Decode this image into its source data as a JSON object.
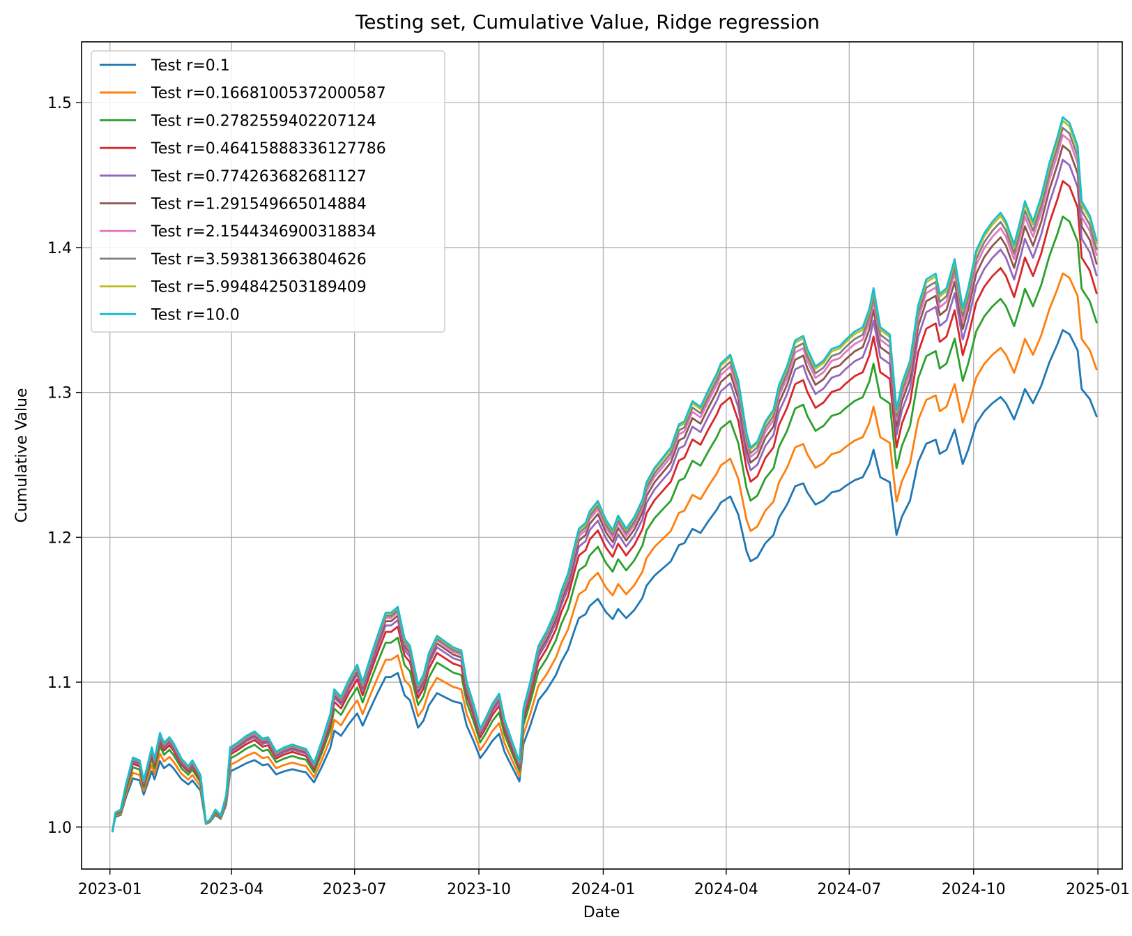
{
  "chart_data": {
    "type": "line",
    "title": "Testing set, Cumulative Value, Ridge regression",
    "xlabel": "Date",
    "ylabel": "Cumulative Value",
    "x_ticks": [
      "2023-01",
      "2023-04",
      "2023-07",
      "2023-10",
      "2024-01",
      "2024-04",
      "2024-07",
      "2024-10",
      "2025-01"
    ],
    "y_ticks": [
      "1.0",
      "1.1",
      "1.2",
      "1.3",
      "1.4",
      "1.5"
    ],
    "xlim": [
      "2022-12-11",
      "2025-01-19"
    ],
    "ylim": [
      0.971,
      1.542
    ],
    "grid": true,
    "legend_position": "upper-left",
    "base_series_dates": [
      "2023-01-03",
      "2023-01-05",
      "2023-01-09",
      "2023-01-13",
      "2023-01-18",
      "2023-01-23",
      "2023-01-26",
      "2023-02-01",
      "2023-02-03",
      "2023-02-07",
      "2023-02-10",
      "2023-02-14",
      "2023-02-17",
      "2023-02-23",
      "2023-02-28",
      "2023-03-03",
      "2023-03-09",
      "2023-03-13",
      "2023-03-16",
      "2023-03-20",
      "2023-03-24",
      "2023-03-28",
      "2023-03-31",
      "2023-04-05",
      "2023-04-12",
      "2023-04-18",
      "2023-04-24",
      "2023-04-28",
      "2023-05-04",
      "2023-05-10",
      "2023-05-16",
      "2023-05-22",
      "2023-05-26",
      "2023-06-01",
      "2023-06-07",
      "2023-06-13",
      "2023-06-16",
      "2023-06-21",
      "2023-06-27",
      "2023-07-03",
      "2023-07-07",
      "2023-07-12",
      "2023-07-18",
      "2023-07-24",
      "2023-07-28",
      "2023-08-02",
      "2023-08-07",
      "2023-08-11",
      "2023-08-17",
      "2023-08-21",
      "2023-08-25",
      "2023-08-31",
      "2023-09-06",
      "2023-09-12",
      "2023-09-18",
      "2023-09-22",
      "2023-09-27",
      "2023-10-02",
      "2023-10-06",
      "2023-10-11",
      "2023-10-16",
      "2023-10-20",
      "2023-10-26",
      "2023-10-31",
      "2023-11-03",
      "2023-11-08",
      "2023-11-14",
      "2023-11-20",
      "2023-11-27",
      "2023-12-01",
      "2023-12-06",
      "2023-12-11",
      "2023-12-14",
      "2023-12-19",
      "2023-12-22",
      "2023-12-28",
      "2024-01-03",
      "2024-01-08",
      "2024-01-12",
      "2024-01-18",
      "2024-01-24",
      "2024-01-30",
      "2024-02-02",
      "2024-02-08",
      "2024-02-14",
      "2024-02-20",
      "2024-02-26",
      "2024-03-01",
      "2024-03-07",
      "2024-03-13",
      "2024-03-19",
      "2024-03-25",
      "2024-03-28",
      "2024-04-04",
      "2024-04-10",
      "2024-04-16",
      "2024-04-19",
      "2024-04-24",
      "2024-04-30",
      "2024-05-06",
      "2024-05-10",
      "2024-05-16",
      "2024-05-22",
      "2024-05-28",
      "2024-05-31",
      "2024-06-06",
      "2024-06-12",
      "2024-06-18",
      "2024-06-24",
      "2024-06-28",
      "2024-07-05",
      "2024-07-11",
      "2024-07-16",
      "2024-07-19",
      "2024-07-24",
      "2024-07-31",
      "2024-08-05",
      "2024-08-09",
      "2024-08-15",
      "2024-08-21",
      "2024-08-27",
      "2024-09-03",
      "2024-09-06",
      "2024-09-11",
      "2024-09-17",
      "2024-09-23",
      "2024-09-27",
      "2024-10-03",
      "2024-10-09",
      "2024-10-15",
      "2024-10-21",
      "2024-10-25",
      "2024-10-31",
      "2024-11-05",
      "2024-11-08",
      "2024-11-14",
      "2024-11-20",
      "2024-11-26",
      "2024-12-02",
      "2024-12-06",
      "2024-12-11",
      "2024-12-17",
      "2024-12-20",
      "2024-12-26",
      "2024-12-31"
    ],
    "base_series_values": [
      0.997,
      1.01,
      1.012,
      1.03,
      1.048,
      1.046,
      1.032,
      1.055,
      1.047,
      1.065,
      1.058,
      1.062,
      1.058,
      1.047,
      1.042,
      1.046,
      1.036,
      1.003,
      1.005,
      1.012,
      1.008,
      1.022,
      1.055,
      1.058,
      1.063,
      1.066,
      1.061,
      1.062,
      1.052,
      1.055,
      1.057,
      1.055,
      1.054,
      1.044,
      1.06,
      1.078,
      1.095,
      1.09,
      1.102,
      1.112,
      1.1,
      1.115,
      1.132,
      1.148,
      1.148,
      1.152,
      1.13,
      1.125,
      1.098,
      1.105,
      1.12,
      1.132,
      1.128,
      1.124,
      1.122,
      1.1,
      1.085,
      1.068,
      1.075,
      1.085,
      1.092,
      1.074,
      1.058,
      1.045,
      1.082,
      1.1,
      1.125,
      1.135,
      1.15,
      1.163,
      1.175,
      1.195,
      1.206,
      1.21,
      1.218,
      1.225,
      1.212,
      1.205,
      1.215,
      1.206,
      1.214,
      1.226,
      1.238,
      1.248,
      1.255,
      1.262,
      1.278,
      1.28,
      1.294,
      1.29,
      1.302,
      1.313,
      1.32,
      1.326,
      1.308,
      1.272,
      1.262,
      1.266,
      1.28,
      1.288,
      1.305,
      1.318,
      1.336,
      1.339,
      1.33,
      1.318,
      1.322,
      1.33,
      1.332,
      1.336,
      1.342,
      1.345,
      1.358,
      1.372,
      1.345,
      1.34,
      1.288,
      1.306,
      1.322,
      1.36,
      1.378,
      1.382,
      1.368,
      1.372,
      1.392,
      1.358,
      1.372,
      1.398,
      1.41,
      1.418,
      1.424,
      1.418,
      1.402,
      1.42,
      1.432,
      1.418,
      1.435,
      1.458,
      1.476,
      1.49,
      1.486,
      1.47,
      1.432,
      1.422,
      1.405,
      1.412
    ],
    "series": [
      {
        "name": "Test r=0.1",
        "scale": 0.7,
        "color": "#1f77b4"
      },
      {
        "name": "Test r=0.16681005372000587",
        "scale": 0.78,
        "color": "#ff7f0e"
      },
      {
        "name": "Test r=0.2782559402207124",
        "scale": 0.86,
        "color": "#2ca02c"
      },
      {
        "name": "Test r=0.46415888336127786",
        "scale": 0.91,
        "color": "#d62728"
      },
      {
        "name": "Test r=0.774263682681127",
        "scale": 0.94,
        "color": "#9467bd"
      },
      {
        "name": "Test r=1.291549665014884",
        "scale": 0.96,
        "color": "#8c564b"
      },
      {
        "name": "Test r=2.1544346900318834",
        "scale": 0.975,
        "color": "#e377c2"
      },
      {
        "name": "Test r=3.593813663804626",
        "scale": 0.985,
        "color": "#7f7f7f"
      },
      {
        "name": "Test r=5.994842503189409",
        "scale": 0.995,
        "color": "#bcbd22"
      },
      {
        "name": "Test r=10.0",
        "scale": 1.0,
        "color": "#17becf"
      }
    ]
  }
}
